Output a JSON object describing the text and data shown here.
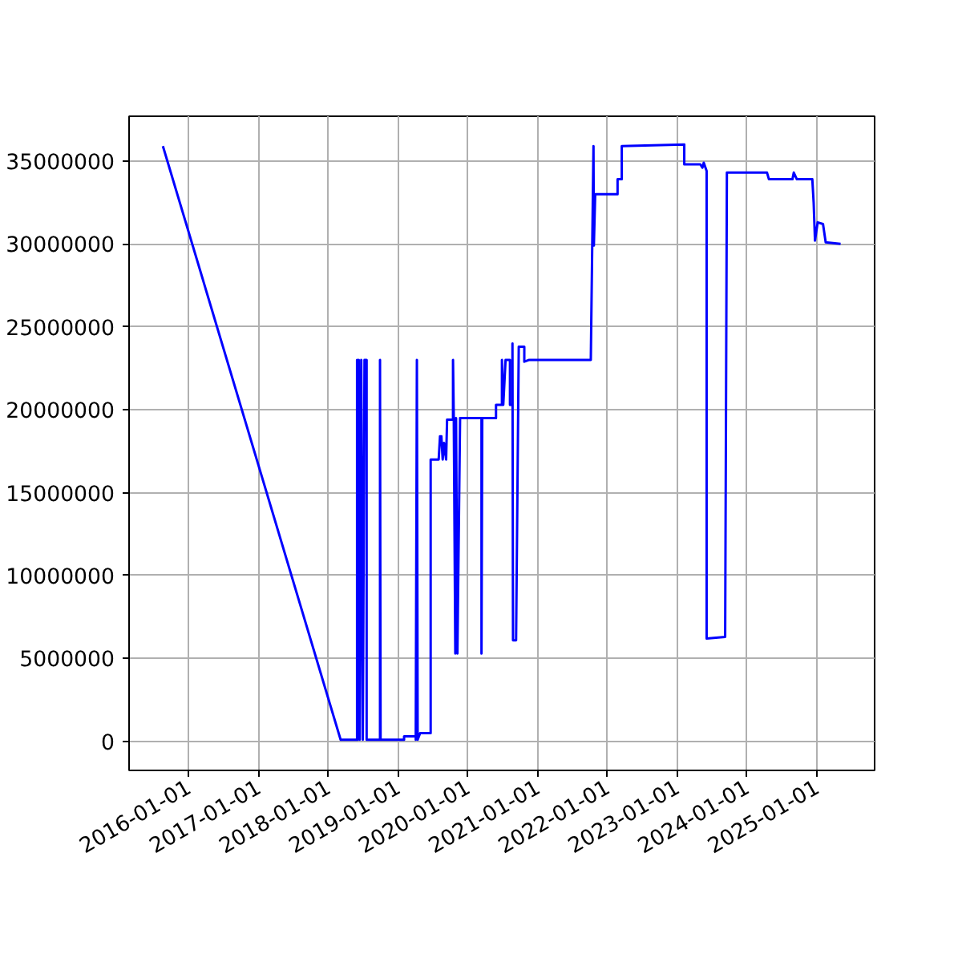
{
  "chart_data": {
    "type": "line",
    "grid": true,
    "marker": "none",
    "line_style": "solid",
    "xlim": [
      "2015-02-24",
      "2025-10-30"
    ],
    "xticks": [
      "2016-01-01",
      "2017-01-01",
      "2018-01-01",
      "2019-01-01",
      "2020-01-01",
      "2021-01-01",
      "2022-01-01",
      "2023-01-01",
      "2024-01-01",
      "2025-01-01"
    ],
    "ylim": [
      -1750000,
      37700000
    ],
    "yticks": [
      0,
      5000000,
      10000000,
      15000000,
      20000000,
      25000000,
      30000000,
      35000000
    ],
    "series": [
      {
        "color": "#0000ff",
        "x": [
          "2015-08-20",
          "2018-03-07",
          "2018-06-01",
          "2018-06-01",
          "2018-06-05",
          "2018-06-10",
          "2018-06-15",
          "2018-06-23",
          "2018-07-01",
          "2018-07-10",
          "2018-07-21",
          "2018-07-21",
          "2018-09-29",
          "2018-09-29",
          "2018-10-02",
          "2019-02-02",
          "2019-02-02",
          "2019-04-04",
          "2019-04-04",
          "2019-04-10",
          "2019-04-14",
          "2019-04-27",
          "2019-06-21",
          "2019-06-21",
          "2019-08-02",
          "2019-08-09",
          "2019-08-16",
          "2019-08-23",
          "2019-08-30",
          "2019-09-10",
          "2019-09-15",
          "2019-10-16",
          "2019-10-16",
          "2019-10-20",
          "2019-10-28",
          "2019-11-01",
          "2019-11-08",
          "2019-11-22",
          "2020-03-13",
          "2020-03-13",
          "2020-03-17",
          "2020-05-28",
          "2020-05-28",
          "2020-06-28",
          "2020-06-28",
          "2020-07-05",
          "2020-07-17",
          "2020-08-09",
          "2020-08-09",
          "2020-08-22",
          "2020-08-22",
          "2020-08-25",
          "2020-09-10",
          "2020-09-24",
          "2020-10-23",
          "2020-10-23",
          "2020-11-15",
          "2021-10-06",
          "2021-10-20",
          "2021-10-22",
          "2021-10-29",
          "2022-02-23",
          "2022-02-23",
          "2022-03-17",
          "2022-03-17",
          "2023-02-07",
          "2023-02-07",
          "2023-05-02",
          "2023-05-13",
          "2023-05-20",
          "2023-06-04",
          "2023-06-04",
          "2023-09-09",
          "2023-09-18",
          "2024-04-15",
          "2024-04-25",
          "2024-08-26",
          "2024-09-02",
          "2024-09-18",
          "2024-12-08",
          "2024-12-15",
          "2024-12-22",
          "2025-01-05",
          "2025-02-02",
          "2025-02-16",
          "2025-05-05"
        ],
        "values": [
          35900000,
          100000,
          100000,
          23000000,
          100000,
          23000000,
          100000,
          23000000,
          100000,
          23000000,
          23000000,
          100000,
          100000,
          23000000,
          100000,
          100000,
          300000,
          300000,
          100000,
          23000000,
          100000,
          500000,
          500000,
          17000000,
          17000000,
          18400000,
          18400000,
          17000000,
          18000000,
          17000000,
          19400000,
          19400000,
          23000000,
          19500000,
          5300000,
          19500000,
          5300000,
          19500000,
          19500000,
          5300000,
          19500000,
          19500000,
          20300000,
          20300000,
          23000000,
          20300000,
          23000000,
          23000000,
          20300000,
          20300000,
          24000000,
          6100000,
          6100000,
          23800000,
          23800000,
          22900000,
          23000000,
          23000000,
          35900000,
          29900000,
          33000000,
          33000000,
          33900000,
          33900000,
          35900000,
          36000000,
          34800000,
          34800000,
          34600000,
          34900000,
          34400000,
          6200000,
          6300000,
          34300000,
          34300000,
          33900000,
          33900000,
          34300000,
          33900000,
          33900000,
          32500000,
          30200000,
          31300000,
          31200000,
          30100000,
          30000000
        ]
      }
    ]
  }
}
